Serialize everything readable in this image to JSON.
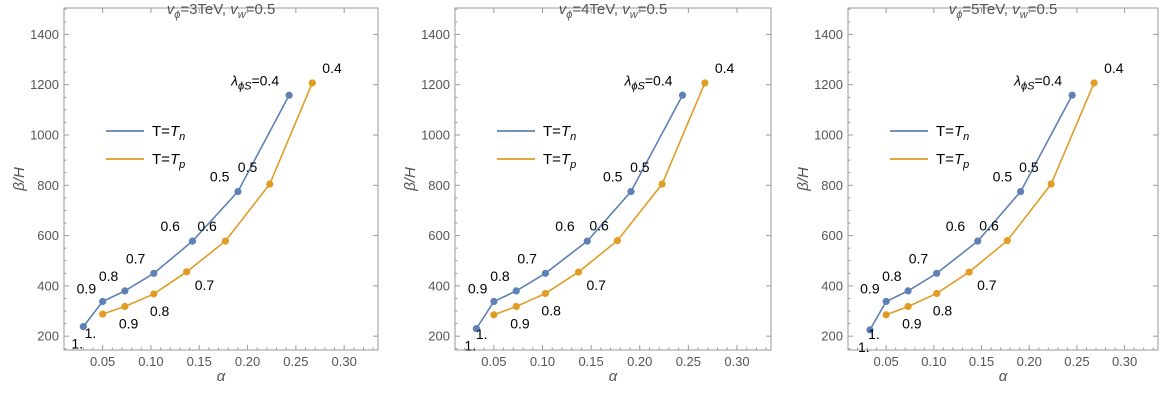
{
  "colors": {
    "tn": "#5E81B5",
    "tp": "#E19C24",
    "frame": "#9a9a9a"
  },
  "chart_data": [
    {
      "type": "line",
      "title": "vϕ=3TeV, vw=0.5",
      "title_parts": {
        "v1": "v",
        "s1": "ϕ",
        "t1": "=3TeV, ",
        "v2": "v",
        "s2": "w",
        "t2": "=0.5"
      },
      "xlabel": "α",
      "ylabel": "β/H",
      "xlim": [
        0.01,
        0.335
      ],
      "ylim": [
        145,
        1505
      ],
      "xticks": [
        "0.05",
        "0.10",
        "0.15",
        "0.20",
        "0.25",
        "0.30"
      ],
      "yticks": [
        "200",
        "400",
        "600",
        "800",
        "1000",
        "1200",
        "1400"
      ],
      "lambda_label": {
        "main": "λ",
        "sub": "ϕS",
        "rest": "=0.4"
      },
      "series": [
        {
          "name": "T=Tn",
          "legend": {
            "main": "T=",
            "var": "T",
            "sub": "n"
          },
          "color_key": "tn",
          "x": [
            0.03,
            0.05,
            0.073,
            0.103,
            0.143,
            0.19,
            0.243
          ],
          "y": [
            238,
            338,
            380,
            450,
            578,
            775,
            1158
          ],
          "labels": [
            "1.",
            "0.9",
            "0.8",
            "0.7",
            "0.6",
            "0.5",
            "0.4"
          ]
        },
        {
          "name": "T=Tp",
          "legend": {
            "main": "T=",
            "var": "T",
            "sub": "p"
          },
          "color_key": "tp",
          "x": [
            0.05,
            0.073,
            0.103,
            0.137,
            0.177,
            0.223,
            0.267
          ],
          "y": [
            288,
            318,
            368,
            456,
            578,
            805,
            1207
          ],
          "labels": [
            "1.",
            "0.9",
            "0.8",
            "0.7",
            "0.6",
            "0.5",
            "0.4"
          ]
        }
      ]
    },
    {
      "type": "line",
      "title": "vϕ=4TeV, vw=0.5",
      "title_parts": {
        "v1": "v",
        "s1": "ϕ",
        "t1": "=4TeV, ",
        "v2": "v",
        "s2": "w",
        "t2": "=0.5"
      },
      "xlabel": "α",
      "ylabel": "β/H",
      "xlim": [
        0.01,
        0.335
      ],
      "ylim": [
        145,
        1505
      ],
      "xticks": [
        "0.05",
        "0.10",
        "0.15",
        "0.20",
        "0.25",
        "0.30"
      ],
      "yticks": [
        "200",
        "400",
        "600",
        "800",
        "1000",
        "1200",
        "1400"
      ],
      "lambda_label": {
        "main": "λ",
        "sub": "ϕS",
        "rest": "=0.4"
      },
      "series": [
        {
          "name": "T=Tn",
          "legend": {
            "main": "T=",
            "var": "T",
            "sub": "n"
          },
          "color_key": "tn",
          "x": [
            0.032,
            0.05,
            0.073,
            0.103,
            0.146,
            0.191,
            0.244
          ],
          "y": [
            230,
            338,
            380,
            450,
            578,
            775,
            1158
          ],
          "labels": [
            "1.",
            "0.9",
            "0.8",
            "0.7",
            "0.6",
            "0.5",
            "0.4"
          ]
        },
        {
          "name": "T=Tp",
          "legend": {
            "main": "T=",
            "var": "T",
            "sub": "p"
          },
          "color_key": "tp",
          "x": [
            0.05,
            0.073,
            0.103,
            0.137,
            0.177,
            0.223,
            0.267
          ],
          "y": [
            285,
            318,
            370,
            455,
            580,
            805,
            1207
          ],
          "labels": [
            "1.",
            "0.9",
            "0.8",
            "0.7",
            "0.6",
            "0.5",
            "0.4"
          ]
        }
      ]
    },
    {
      "type": "line",
      "title": "vϕ=5TeV, vw=0.5",
      "title_parts": {
        "v1": "v",
        "s1": "ϕ",
        "t1": "=5TeV, ",
        "v2": "v",
        "s2": "w",
        "t2": "=0.5"
      },
      "xlabel": "α",
      "ylabel": "β/H",
      "xlim": [
        0.01,
        0.335
      ],
      "ylim": [
        145,
        1505
      ],
      "xticks": [
        "0.05",
        "0.10",
        "0.15",
        "0.20",
        "0.25",
        "0.30"
      ],
      "yticks": [
        "200",
        "400",
        "600",
        "800",
        "1000",
        "1200",
        "1400"
      ],
      "lambda_label": {
        "main": "λ",
        "sub": "ϕS",
        "rest": "=0.4"
      },
      "series": [
        {
          "name": "T=Tn",
          "legend": {
            "main": "T=",
            "var": "T",
            "sub": "n"
          },
          "color_key": "tn",
          "x": [
            0.033,
            0.05,
            0.073,
            0.103,
            0.146,
            0.191,
            0.245
          ],
          "y": [
            225,
            338,
            380,
            450,
            578,
            775,
            1158
          ],
          "labels": [
            "1.",
            "0.9",
            "0.8",
            "0.7",
            "0.6",
            "0.5",
            "0.4"
          ]
        },
        {
          "name": "T=Tp",
          "legend": {
            "main": "T=",
            "var": "T",
            "sub": "p"
          },
          "color_key": "tp",
          "x": [
            0.05,
            0.073,
            0.103,
            0.137,
            0.177,
            0.223,
            0.268
          ],
          "y": [
            285,
            318,
            370,
            455,
            580,
            805,
            1207
          ],
          "labels": [
            "1.",
            "0.9",
            "0.8",
            "0.7",
            "0.6",
            "0.5",
            "0.4"
          ]
        }
      ]
    }
  ]
}
